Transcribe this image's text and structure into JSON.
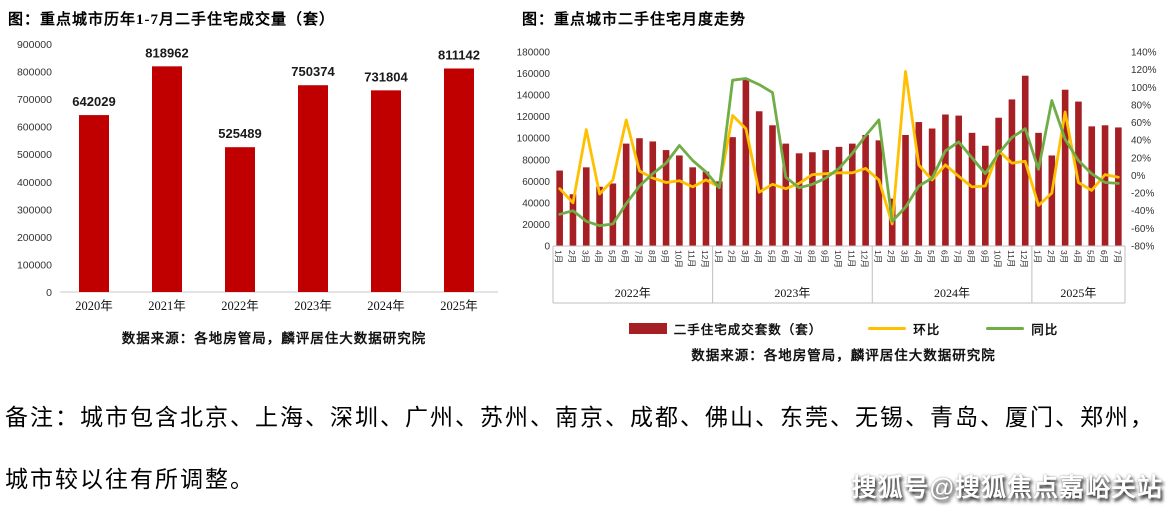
{
  "page": {
    "background": "#ffffff"
  },
  "note": {
    "line1": "备注：城市包含北京、上海、深圳、广州、苏州、南京、成都、佛山、东莞、无锡、青岛、厦门、郑州，",
    "line2": "城市较以往有所调整。"
  },
  "watermark": "搜狐号@搜狐焦点嘉峪关站",
  "chart_data": [
    {
      "id": "annual-volume",
      "type": "bar",
      "title": "图：重点城市历年1-7月二手住宅成交量（套）",
      "categories": [
        "2020年",
        "2021年",
        "2022年",
        "2023年",
        "2024年",
        "2025年"
      ],
      "values": [
        642029,
        818962,
        525489,
        750374,
        731804,
        811142
      ],
      "ylim": [
        0,
        900000
      ],
      "ytick_step": 100000,
      "bar_color": "#c00000",
      "grid": "off",
      "source": "数据来源：各地房管局，麟评居住大数据研究院"
    },
    {
      "id": "monthly-trend",
      "type": "combo-bar-line",
      "title": "图：重点城市二手住宅月度走势",
      "year_groups": [
        {
          "label": "2022年",
          "months": 12
        },
        {
          "label": "2023年",
          "months": 12
        },
        {
          "label": "2024年",
          "months": 12
        },
        {
          "label": "2025年",
          "months": 7
        }
      ],
      "month_labels": [
        "1月",
        "2月",
        "3月",
        "4月",
        "5月",
        "6月",
        "7月",
        "8月",
        "9月",
        "10月",
        "11月",
        "12月",
        "1月",
        "2月",
        "3月",
        "4月",
        "5月",
        "6月",
        "7月",
        "8月",
        "9月",
        "10月",
        "11月",
        "12月",
        "1月",
        "2月",
        "3月",
        "4月",
        "5月",
        "6月",
        "7月",
        "8月",
        "9月",
        "10月",
        "11月",
        "12月",
        "1月",
        "2月",
        "3月",
        "4月",
        "5月",
        "6月",
        "7月"
      ],
      "left_axis": {
        "min": 0,
        "max": 180000,
        "step": 20000
      },
      "right_axis": {
        "min": -80,
        "max": 140,
        "step": 20,
        "suffix": "%"
      },
      "grid": "off",
      "legend_position": "bottom",
      "series": [
        {
          "name": "二手住宅成交套数（套）",
          "type": "bar",
          "axis": "left",
          "color": "#a61f24",
          "values": [
            70000,
            48000,
            73000,
            55000,
            58000,
            95000,
            100000,
            97000,
            89000,
            84000,
            73000,
            69000,
            60000,
            101000,
            155000,
            125000,
            112000,
            95000,
            86000,
            87000,
            89000,
            92000,
            95000,
            103000,
            98000,
            44000,
            103000,
            115000,
            109000,
            122000,
            121000,
            105000,
            93000,
            119000,
            136000,
            158000,
            105000,
            84000,
            145000,
            134000,
            111000,
            112000,
            110000
          ]
        },
        {
          "name": "环比",
          "type": "line",
          "axis": "right",
          "color": "#ffc000",
          "values": [
            -15,
            -31,
            52,
            -21,
            -5,
            63,
            5,
            -3,
            -8,
            -6,
            -13,
            -5,
            -13,
            68,
            53,
            -19,
            -10,
            -15,
            -9,
            1,
            2,
            3,
            3,
            8,
            -5,
            -55,
            118,
            12,
            -5,
            12,
            -1,
            -13,
            -12,
            28,
            14,
            16,
            -34,
            -20,
            72,
            -8,
            -17,
            1,
            -2
          ]
        },
        {
          "name": "同比",
          "type": "line",
          "axis": "right",
          "color": "#70ad47",
          "values": [
            -44,
            -40,
            -52,
            -57,
            -55,
            -32,
            -12,
            2,
            14,
            34,
            17,
            4,
            -14,
            108,
            110,
            103,
            94,
            -2,
            -14,
            -10,
            -3,
            8,
            25,
            45,
            63,
            -52,
            -36,
            -12,
            -3,
            28,
            38,
            20,
            2,
            25,
            43,
            53,
            7,
            85,
            41,
            17,
            2,
            -8,
            -9
          ]
        }
      ],
      "source": "数据来源：各地房管局，麟评居住大数据研究院"
    }
  ]
}
